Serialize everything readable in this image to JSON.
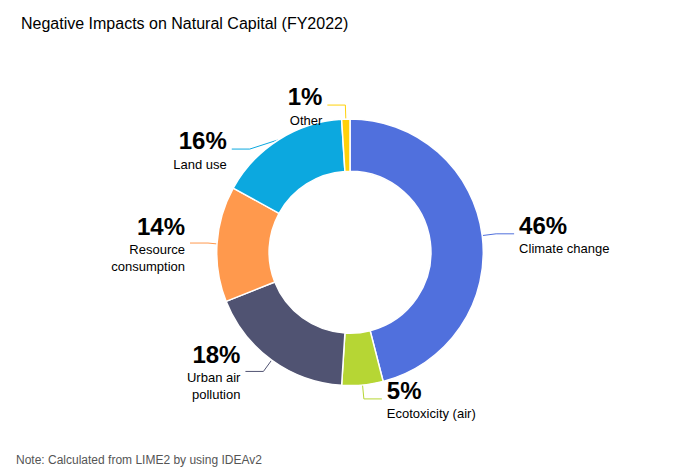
{
  "chart_data": {
    "type": "pie",
    "title": "Negative Impacts on Natural Capital (FY2022)",
    "note": "Note: Calculated from LIME2 by using IDEAv2",
    "categories": [
      "Climate change",
      "Ecotoxicity (air)",
      "Urban air\npollution",
      "Resource\nconsumption",
      "Land use",
      "Other"
    ],
    "values": [
      46,
      5,
      18,
      14,
      16,
      1
    ],
    "value_labels": [
      "46%",
      "5%",
      "18%",
      "14%",
      "16%",
      "1%"
    ],
    "data_labels": true
  }
}
